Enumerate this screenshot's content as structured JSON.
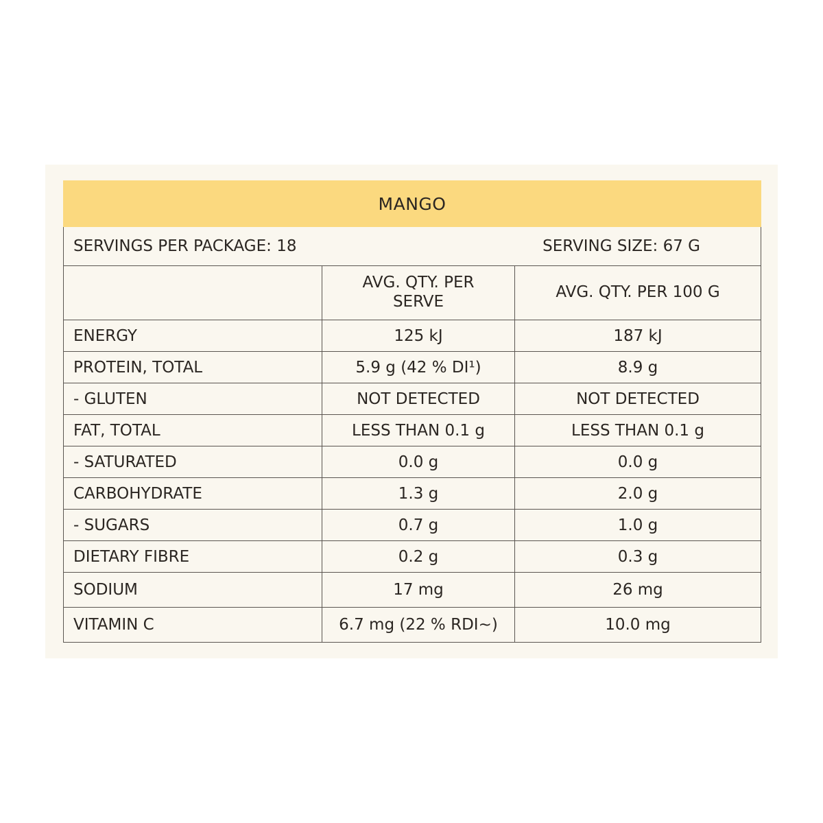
{
  "colors": {
    "header_bg": "#fbd97f",
    "panel_bg": "#faf7ef",
    "border": "#5a5550"
  },
  "title": "MANGO",
  "servings_per_package": "SERVINGS PER PACKAGE: 18",
  "serving_size": "SERVING SIZE: 67 G",
  "columns": [
    "",
    "AVG. QTY. PER SERVE",
    "AVG. QTY. PER 100 G"
  ],
  "rows": [
    {
      "name": "ENERGY",
      "per_serve": "125 kJ",
      "per_100g": "187 kJ"
    },
    {
      "name": "PROTEIN, TOTAL",
      "per_serve": "5.9 g (42 % DI¹)",
      "per_100g": "8.9 g"
    },
    {
      "name": "- GLUTEN",
      "per_serve": "NOT DETECTED",
      "per_100g": "NOT DETECTED"
    },
    {
      "name": "FAT, TOTAL",
      "per_serve": "LESS THAN 0.1 g",
      "per_100g": "LESS THAN 0.1 g"
    },
    {
      "name": "- SATURATED",
      "per_serve": "0.0 g",
      "per_100g": "0.0 g"
    },
    {
      "name": "CARBOHYDRATE",
      "per_serve": "1.3 g",
      "per_100g": "2.0 g"
    },
    {
      "name": "- SUGARS",
      "per_serve": "0.7 g",
      "per_100g": "1.0 g"
    },
    {
      "name": "DIETARY FIBRE",
      "per_serve": "0.2 g",
      "per_100g": "0.3 g"
    },
    {
      "name": "SODIUM",
      "per_serve": "17 mg",
      "per_100g": "26 mg"
    },
    {
      "name": "VITAMIN C",
      "per_serve": "6.7 mg (22 % RDI~)",
      "per_100g": "10.0 mg"
    }
  ]
}
